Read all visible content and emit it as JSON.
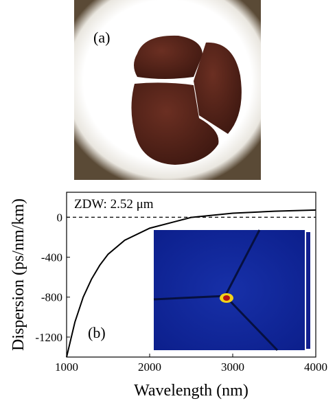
{
  "panel_a_label": "(a)",
  "chart_data": {
    "type": "line",
    "panel_label": "(b)",
    "x_label": "Wavelength (nm)",
    "y_label": "Dispersion (ps/nm/km)",
    "annotation": "ZDW: 2.52 μm",
    "x": [
      1000,
      1100,
      1200,
      1300,
      1400,
      1500,
      1700,
      2000,
      2500,
      3000,
      3500,
      4000
    ],
    "series": [
      {
        "color": "#000000",
        "values": [
          -1400,
          -1050,
          -800,
          -620,
          -480,
          -370,
          -230,
          -110,
          -2,
          40,
          60,
          72
        ]
      }
    ],
    "xlim": [
      1000,
      4000
    ],
    "xticks": [
      1000,
      2000,
      3000,
      4000
    ],
    "ylim": [
      -1400,
      250
    ],
    "yticks": [
      -1200,
      -800,
      -400,
      0
    ],
    "reference_line": 0
  }
}
